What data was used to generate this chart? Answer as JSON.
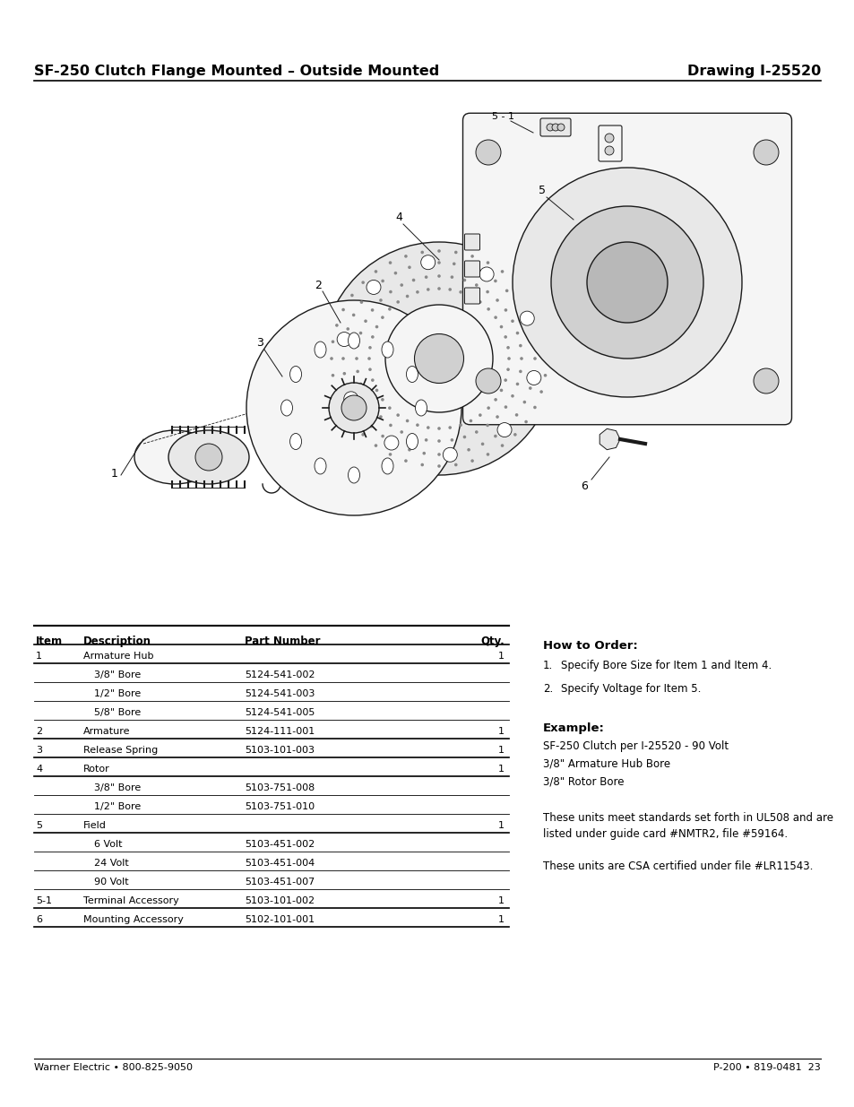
{
  "title_left": "SF-250 Clutch Flange Mounted – Outside Mounted",
  "title_right": "Drawing I-25520",
  "footer_left": "Warner Electric • 800-825-9050",
  "footer_right": "P-200 • 819-0481  23",
  "table_headers": [
    "Item",
    "Description",
    "Part Number",
    "Qty."
  ],
  "table_rows": [
    [
      "1",
      "Armature Hub",
      "",
      "1"
    ],
    [
      "",
      "3/8\" Bore",
      "5124-541-002",
      ""
    ],
    [
      "",
      "1/2\" Bore",
      "5124-541-003",
      ""
    ],
    [
      "",
      "5/8\" Bore",
      "5124-541-005",
      ""
    ],
    [
      "2",
      "Armature",
      "5124-111-001",
      "1"
    ],
    [
      "3",
      "Release Spring",
      "5103-101-003",
      "1"
    ],
    [
      "4",
      "Rotor",
      "",
      "1"
    ],
    [
      "",
      "3/8\" Bore",
      "5103-751-008",
      ""
    ],
    [
      "",
      "1/2\" Bore",
      "5103-751-010",
      ""
    ],
    [
      "5",
      "Field",
      "",
      "1"
    ],
    [
      "",
      "6 Volt",
      "5103-451-002",
      ""
    ],
    [
      "",
      "24 Volt",
      "5103-451-004",
      ""
    ],
    [
      "",
      "90 Volt",
      "5103-451-007",
      ""
    ],
    [
      "5-1",
      "Terminal Accessory",
      "5103-101-002",
      "1"
    ],
    [
      "6",
      "Mounting Accessory",
      "5102-101-001",
      "1"
    ]
  ],
  "how_to_order_title": "How to Order:",
  "how_to_order_items": [
    "Specify Bore Size for Item 1 and Item 4.",
    "Specify Voltage for Item 5."
  ],
  "example_title": "Example:",
  "example_lines": [
    "SF-250 Clutch per I-25520 - 90 Volt",
    "3/8\" Armature Hub Bore",
    "3/8\" Rotor Bore"
  ],
  "note1": "These units meet standards set forth in UL508 and are\nlisted under guide card #NMTR2, file #59164.",
  "note2": "These units are CSA certified under file #LR11543.",
  "bg_color": "#ffffff",
  "text_color": "#000000"
}
